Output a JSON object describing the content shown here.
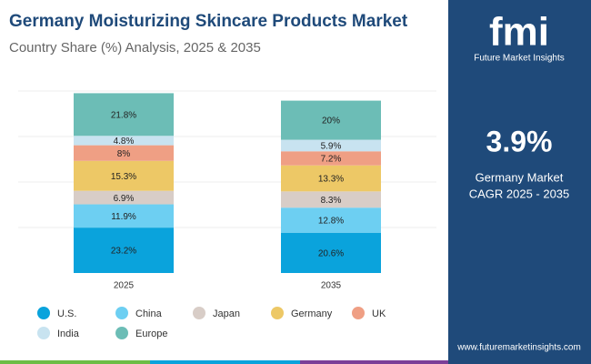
{
  "chart_data": {
    "type": "stacked_bar",
    "title": "Germany Moisturizing Skincare Products Market",
    "subtitle": "Country Share (%) Analysis, 2025 & 2035",
    "categories": [
      "2025",
      "2035"
    ],
    "series": [
      {
        "name": "U.S.",
        "color": "#0aa3dc",
        "values": [
          23.2,
          20.6
        ],
        "value_labels": [
          "23.2%",
          "20.6%"
        ]
      },
      {
        "name": "China",
        "color": "#6dcff2",
        "values": [
          11.9,
          12.8
        ],
        "value_labels": [
          "11.9%",
          "12.8%"
        ]
      },
      {
        "name": "Japan",
        "color": "#d8cdc7",
        "values": [
          6.9,
          8.3
        ],
        "value_labels": [
          "6.9%",
          "8.3%"
        ]
      },
      {
        "name": "Germany",
        "color": "#edc866",
        "values": [
          15.3,
          13.3
        ],
        "value_labels": [
          "15.3%",
          "13.3%"
        ]
      },
      {
        "name": "UK",
        "color": "#ef9f84",
        "values": [
          8,
          7.2
        ],
        "value_labels": [
          "8%",
          "7.2%"
        ]
      },
      {
        "name": "India",
        "color": "#c8e3f0",
        "values": [
          4.8,
          5.9
        ],
        "value_labels": [
          "4.8%",
          "5.9%"
        ]
      },
      {
        "name": "Europe",
        "color": "#6cbdb6",
        "values": [
          21.8,
          20
        ],
        "value_labels": [
          "21.8%",
          "20%"
        ]
      }
    ]
  },
  "sidebar": {
    "logo": "fmi",
    "brand": "Future Market Insights",
    "cagr": "3.9%",
    "cagr_label": [
      "Germany Market",
      "CAGR 2025 - 2035"
    ],
    "url": "www.futuremarketinsights.com"
  }
}
